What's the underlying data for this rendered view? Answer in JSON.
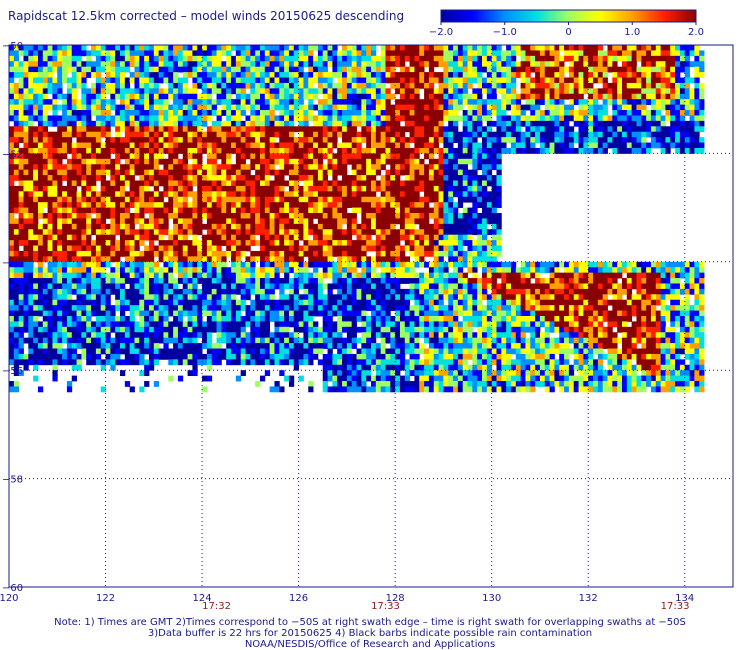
{
  "title": "Rapidscat 12.5km corrected – model winds 20150625 descending",
  "colorbar": {
    "ticks": [
      {
        "value": -2.0,
        "label": "−2.0"
      },
      {
        "value": -1.0,
        "label": "−1.0"
      },
      {
        "value": 0,
        "label": "0"
      },
      {
        "value": 1.0,
        "label": "1.0"
      },
      {
        "value": 2.0,
        "label": "2.0"
      }
    ],
    "range": [
      -2.0,
      2.0
    ],
    "colors": [
      "#0000a0",
      "#0000ff",
      "#0090ff",
      "#00e0e0",
      "#a0ff60",
      "#ffff00",
      "#ffa000",
      "#ff2000",
      "#8b0000"
    ]
  },
  "chart_data": {
    "type": "heatmap",
    "xlim": [
      120,
      135
    ],
    "ylim": [
      -60,
      -50
    ],
    "xticks": [
      120,
      122,
      124,
      126,
      128,
      130,
      132,
      134
    ],
    "yticks": [
      -50,
      -52,
      -54,
      -56,
      -58,
      -60
    ],
    "ytick_labels": [
      "−50",
      "−52",
      "−54",
      "−56",
      "−58",
      "−60"
    ],
    "grid": true,
    "swath_times": [
      {
        "x": 124.3,
        "label": "17:32"
      },
      {
        "x": 127.8,
        "label": "17:33"
      },
      {
        "x": 133.8,
        "label": "17:33"
      }
    ],
    "value_range": [
      -2.0,
      2.0
    ],
    "data_extent": {
      "lon": [
        120,
        134.4
      ],
      "lat": [
        -56.4,
        -50
      ]
    },
    "no_data_region": {
      "lon": [
        130.2,
        134.4
      ],
      "lat": [
        -54.0,
        -52.0
      ]
    }
  },
  "notes": {
    "line1": "Note: 1) Times are GMT 2)Times correspond to −50S at right swath edge – time is right swath for overlapping swaths at −50S",
    "line2": "3)Data buffer is 22 hrs for 20150625 4) Black barbs indicate possible rain contamination",
    "line3": "NOAA/NESDIS/Office of Research and Applications"
  }
}
